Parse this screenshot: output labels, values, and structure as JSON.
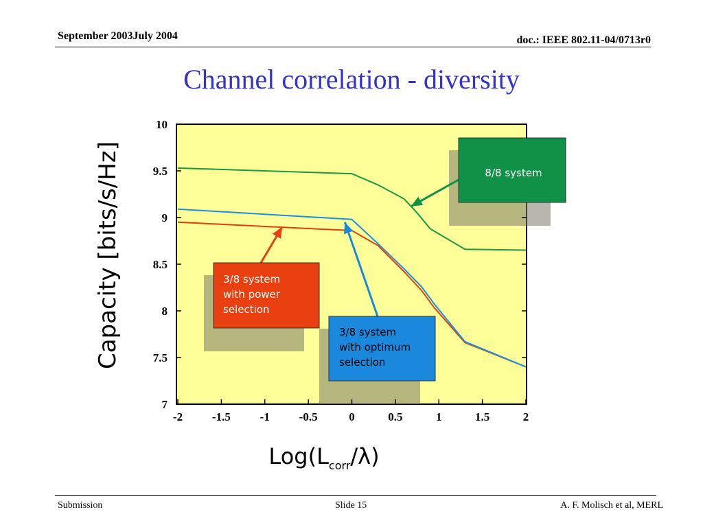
{
  "header": {
    "left": "September 2003July 2004",
    "right": "doc.: IEEE 802.11-04/0713r0"
  },
  "title": "Channel correlation - diversity",
  "footer": {
    "left": "Submission",
    "center": "Slide 15",
    "right": "A. F. Molisch et al, MERL"
  },
  "chart_data": {
    "type": "line",
    "xlabel": {
      "main": "Log(L",
      "sub": "corr",
      "tail": "/λ)"
    },
    "ylabel": "Capacity [bits/s/Hz]",
    "xlim": [
      -2,
      2
    ],
    "ylim": [
      7,
      10
    ],
    "x_ticks": [
      "-2",
      "-1.5",
      "-1",
      "-0.5",
      "0",
      "0.5",
      "1",
      "1.5",
      "2"
    ],
    "y_ticks": [
      "7",
      "7.5",
      "8",
      "8.5",
      "9",
      "9.5",
      "10"
    ],
    "grid": false,
    "background": "#ffff99",
    "series": [
      {
        "name": "8/8 system",
        "color": "#1a9940",
        "x": [
          -2,
          0,
          0.3,
          0.6,
          0.75,
          0.9,
          1.3,
          2
        ],
        "y": [
          9.53,
          9.47,
          9.35,
          9.2,
          9.05,
          8.88,
          8.66,
          8.65
        ]
      },
      {
        "name": "3/8 system with power selection",
        "color": "#e04010",
        "x": [
          -2,
          0,
          0.3,
          0.6,
          0.8,
          0.95,
          1.3,
          2
        ],
        "y": [
          8.95,
          8.86,
          8.7,
          8.42,
          8.22,
          8.03,
          7.66,
          7.4
        ]
      },
      {
        "name": "3/8 system with optimum selection",
        "color": "#1a8fe0",
        "x": [
          -2,
          0,
          0.3,
          0.6,
          0.8,
          0.95,
          1.3,
          2
        ],
        "y": [
          9.09,
          8.98,
          8.72,
          8.45,
          8.26,
          8.07,
          7.67,
          7.4
        ]
      }
    ],
    "annotations": [
      {
        "lines": [
          "8/8 system"
        ],
        "box_color": "#0f9148",
        "text_color": "#ffffff",
        "arrow_color": "#0f9148",
        "target": [
          0.68,
          9.12
        ]
      },
      {
        "lines": [
          "3/8 system",
          "with power",
          "selection"
        ],
        "box_color": "#e84010",
        "text_color": "#ffffff",
        "arrow_color": "#e84010",
        "target": [
          -0.8,
          8.9
        ]
      },
      {
        "lines": [
          "3/8 system",
          "with optimum",
          "selection"
        ],
        "box_color": "#1a88dd",
        "text_color": "#000000",
        "arrow_color": "#1a88dd",
        "target": [
          -0.08,
          8.95
        ]
      }
    ]
  }
}
